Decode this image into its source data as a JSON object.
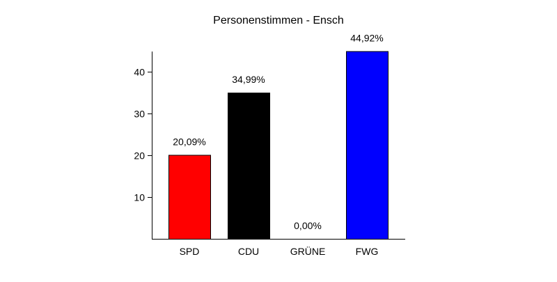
{
  "chart_data": {
    "type": "bar",
    "title": "Personenstimmen - Ensch",
    "xlabel": "",
    "ylabel": "",
    "categories": [
      "SPD",
      "CDU",
      "GRÜNE",
      "FWG"
    ],
    "values": [
      20.09,
      34.99,
      0.0,
      44.92
    ],
    "value_labels": [
      "20,09%",
      "34,99%",
      "0,00%",
      "44,92%"
    ],
    "colors": [
      "#ff0000",
      "#000000",
      "#00aa00",
      "#0000ff"
    ],
    "ylim": [
      0,
      45
    ],
    "yticks": [
      10,
      20,
      30,
      40
    ],
    "grid": false,
    "legend": "none"
  }
}
